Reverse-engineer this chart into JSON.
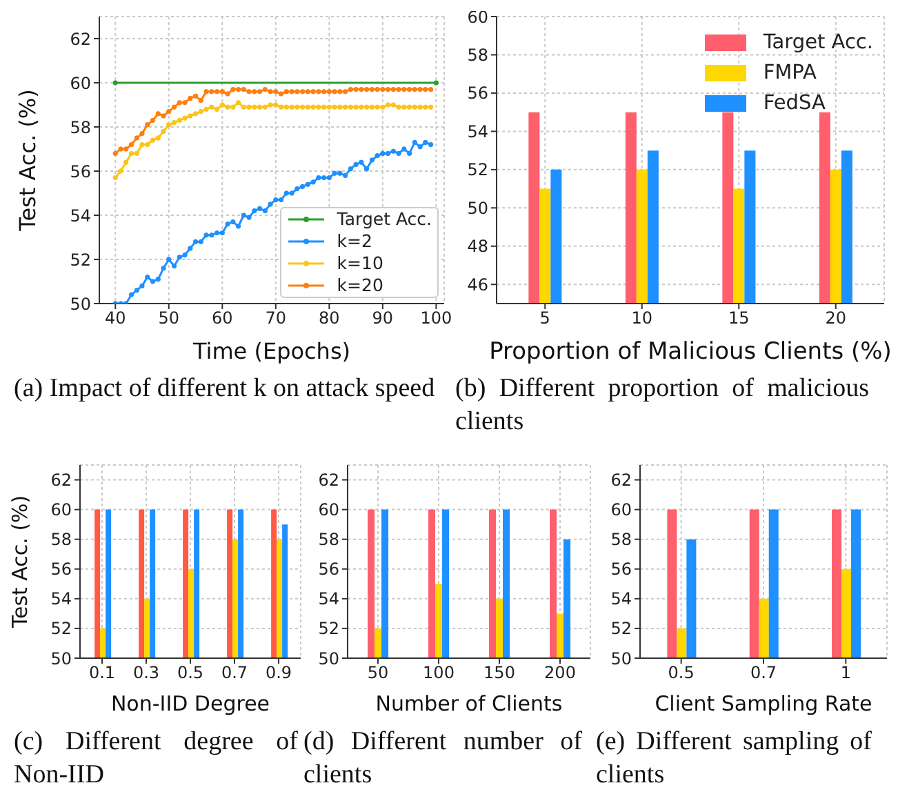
{
  "chart_data": [
    {
      "type": "line",
      "xlabel": "Time (Epochs)",
      "ylabel": "Test Acc. (%)",
      "xlim": [
        37,
        101.5
      ],
      "xticks": [
        40,
        50,
        60,
        70,
        80,
        90,
        100
      ],
      "ylim": [
        50,
        63
      ],
      "yticks": [
        50,
        52,
        54,
        56,
        58,
        60,
        62
      ],
      "grid": true,
      "legend": "bottom right",
      "marker": "circle",
      "annotations": [
        "(a) Impact of different k on attack speed"
      ],
      "x": [
        40,
        41,
        42,
        43,
        44,
        45,
        46,
        47,
        48,
        49,
        50,
        51,
        52,
        53,
        54,
        55,
        56,
        57,
        58,
        59,
        60,
        61,
        62,
        63,
        64,
        65,
        66,
        67,
        68,
        69,
        70,
        71,
        72,
        73,
        74,
        75,
        76,
        77,
        78,
        79,
        80,
        81,
        82,
        83,
        84,
        85,
        86,
        87,
        88,
        89,
        90,
        91,
        92,
        93,
        94,
        95,
        96,
        97,
        98,
        99
      ],
      "series": [
        {
          "name": "Target Acc.",
          "color": "#2e9e2e",
          "x": [
            40,
            100
          ],
          "values": [
            60,
            60
          ]
        },
        {
          "name": "k=2",
          "color": "#1e90ff",
          "values": [
            50.0,
            50.0,
            50.0,
            50.4,
            50.6,
            50.8,
            51.2,
            51.0,
            51.1,
            51.6,
            52.0,
            51.7,
            52.1,
            52.2,
            52.5,
            52.8,
            52.8,
            53.1,
            53.1,
            53.2,
            53.2,
            53.6,
            53.7,
            53.5,
            54.0,
            53.9,
            54.2,
            54.3,
            54.2,
            54.5,
            54.7,
            54.7,
            55.0,
            55.0,
            55.2,
            55.3,
            55.4,
            55.5,
            55.7,
            55.7,
            55.7,
            55.9,
            55.9,
            55.8,
            56.1,
            56.3,
            56.4,
            56.1,
            56.5,
            56.7,
            56.8,
            56.8,
            56.9,
            56.8,
            57.0,
            56.8,
            57.3,
            57.1,
            57.3,
            57.2
          ]
        },
        {
          "name": "k=10",
          "color": "#fcc419",
          "values": [
            55.7,
            56.0,
            56.4,
            56.8,
            56.8,
            57.2,
            57.2,
            57.4,
            57.5,
            57.8,
            58.1,
            58.2,
            58.3,
            58.4,
            58.5,
            58.6,
            58.7,
            58.8,
            58.9,
            58.8,
            59.0,
            58.9,
            58.9,
            59.1,
            58.9,
            58.9,
            58.9,
            58.9,
            58.9,
            59.0,
            59.0,
            58.9,
            58.9,
            58.9,
            58.9,
            58.9,
            58.9,
            58.9,
            58.9,
            58.9,
            58.9,
            58.9,
            58.9,
            58.9,
            58.9,
            58.9,
            58.9,
            58.9,
            58.9,
            58.9,
            58.9,
            59.0,
            59.0,
            58.9,
            58.9,
            58.9,
            58.9,
            58.9,
            58.9,
            58.9
          ]
        },
        {
          "name": "k=20",
          "color": "#ff7f0e",
          "values": [
            56.8,
            57.0,
            57.0,
            57.2,
            57.5,
            57.7,
            58.1,
            58.3,
            58.6,
            58.5,
            58.7,
            58.9,
            59.1,
            59.1,
            59.3,
            59.4,
            59.2,
            59.6,
            59.6,
            59.6,
            59.6,
            59.5,
            59.7,
            59.7,
            59.7,
            59.6,
            59.6,
            59.6,
            59.7,
            59.6,
            59.6,
            59.5,
            59.6,
            59.6,
            59.6,
            59.6,
            59.6,
            59.6,
            59.6,
            59.6,
            59.6,
            59.6,
            59.6,
            59.6,
            59.7,
            59.7,
            59.7,
            59.7,
            59.7,
            59.7,
            59.7,
            59.7,
            59.7,
            59.7,
            59.7,
            59.7,
            59.7,
            59.7,
            59.7,
            59.7
          ]
        }
      ]
    },
    {
      "type": "bar",
      "xlabel": "Proportion of Malicious Clients (%)",
      "categories": [
        "5",
        "10",
        "15",
        "20"
      ],
      "ylim": [
        45,
        60
      ],
      "yticks": [
        46,
        48,
        50,
        52,
        54,
        56,
        58,
        60
      ],
      "grid": true,
      "legend": "top right",
      "annotations": [
        "(b) Different proportion of malicious clients"
      ],
      "series": [
        {
          "name": "Target Acc.",
          "color": "#ff5f6d",
          "values": [
            55,
            55,
            55,
            55
          ]
        },
        {
          "name": "FMPA",
          "color": "#ffd700",
          "values": [
            51,
            52,
            51,
            52
          ]
        },
        {
          "name": "FedSA",
          "color": "#1e90ff",
          "values": [
            52,
            53,
            53,
            53
          ]
        }
      ]
    },
    {
      "type": "bar",
      "xlabel": "Non-IID Degree",
      "ylabel": "Test Acc. (%)",
      "categories": [
        "0.1",
        "0.3",
        "0.5",
        "0.7",
        "0.9"
      ],
      "ylim": [
        50,
        63
      ],
      "yticks": [
        50,
        52,
        54,
        56,
        58,
        60,
        62
      ],
      "grid": true,
      "annotations": [
        "(c) Different degree of Non-IID"
      ],
      "series": [
        {
          "color": "#ff5a44",
          "values": [
            60,
            60,
            60,
            60,
            60
          ]
        },
        {
          "color": "#ffd700",
          "values": [
            52,
            54,
            56,
            58,
            58
          ]
        },
        {
          "color": "#1e90ff",
          "values": [
            60,
            60,
            60,
            60,
            59
          ]
        }
      ]
    },
    {
      "type": "bar",
      "xlabel": "Number of Clients",
      "categories": [
        "50",
        "100",
        "150",
        "200"
      ],
      "ylim": [
        50,
        63
      ],
      "yticks": [
        50,
        52,
        54,
        56,
        58,
        60,
        62
      ],
      "grid": true,
      "annotations": [
        "(d) Different number of clients"
      ],
      "series": [
        {
          "color": "#ff5f6d",
          "values": [
            60,
            60,
            60,
            60
          ]
        },
        {
          "color": "#ffd700",
          "values": [
            52,
            55,
            54,
            53
          ]
        },
        {
          "color": "#1e90ff",
          "values": [
            60,
            60,
            60,
            58
          ]
        }
      ]
    },
    {
      "type": "bar",
      "xlabel": "Client Sampling Rate",
      "categories": [
        "0.5",
        "0.7",
        "1"
      ],
      "ylim": [
        50,
        63
      ],
      "yticks": [
        50,
        52,
        54,
        56,
        58,
        60,
        62
      ],
      "grid": true,
      "annotations": [
        "(e) Different sampling of clients"
      ],
      "series": [
        {
          "color": "#ff5f6d",
          "values": [
            60,
            60,
            60
          ]
        },
        {
          "color": "#ffd700",
          "values": [
            52,
            54,
            56
          ]
        },
        {
          "color": "#1e90ff",
          "values": [
            58,
            60,
            60
          ]
        }
      ]
    }
  ]
}
